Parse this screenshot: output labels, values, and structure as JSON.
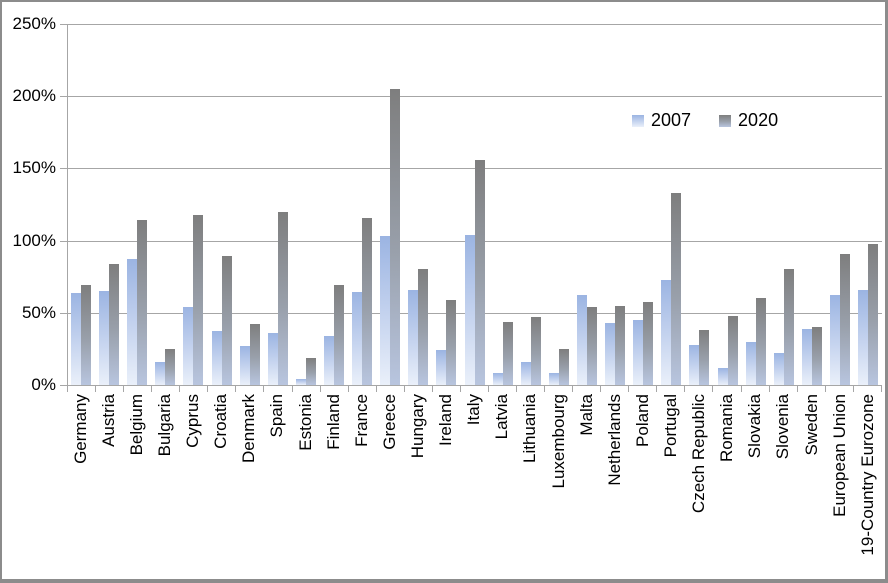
{
  "legend": {
    "items": [
      {
        "label": "2007"
      },
      {
        "label": "2020"
      }
    ]
  },
  "y_axis": {
    "tick_labels": [
      "0%",
      "50%",
      "100%",
      "150%",
      "200%",
      "250%"
    ]
  },
  "colors": {
    "gridline": "#a6a6a6",
    "axis": "#a6a6a6",
    "frame_border": "#8c8c8c",
    "series_2007_top": "#9bb4e2",
    "series_2007_mid": "#c6d4ef",
    "series_2007_bottom": "#eaf0fa",
    "series_2020_top": "#7e7e7e",
    "series_2020_mid": "#99a0ab",
    "series_2020_bottom": "#b8c5df"
  },
  "chart_data": {
    "type": "bar",
    "categories": [
      "Germany",
      "Austria",
      "Belgium",
      "Bulgaria",
      "Cyprus",
      "Croatia",
      "Denmark",
      "Spain",
      "Estonia",
      "Finland",
      "France",
      "Greece",
      "Hungary",
      "Ireland",
      "Italy",
      "Latvia",
      "Lithuania",
      "Luxembourg",
      "Malta",
      "Netherlands",
      "Poland",
      "Portugal",
      "Czech Republic",
      "Romania",
      "Slovakia",
      "Slovenia",
      "Sweden",
      "European Union",
      "19-Country Eurozone"
    ],
    "series": [
      {
        "name": "2007",
        "color_top": "#9bb4e2",
        "color_mid": "#c6d4ef",
        "color_bottom": "#eaf0fa",
        "values": [
          64,
          65,
          87,
          16,
          54,
          37.5,
          27,
          36,
          4,
          34,
          64.5,
          103,
          65.5,
          24,
          104,
          8.5,
          16,
          8,
          62,
          43,
          45,
          73,
          27.5,
          12,
          30,
          22.5,
          39,
          62,
          66
        ]
      },
      {
        "name": "2020",
        "color_top": "#7e7e7e",
        "color_mid": "#99a0ab",
        "color_bottom": "#b8c5df",
        "values": [
          69,
          84,
          114,
          25,
          118,
          89,
          42,
          120,
          18.5,
          69,
          115.5,
          205,
          80,
          59,
          155.5,
          43.5,
          47,
          25,
          54,
          54.5,
          57.5,
          133,
          38,
          47.5,
          60,
          80.5,
          40,
          90.5,
          98
        ]
      }
    ],
    "ylabel": "",
    "xlabel": "",
    "ylim": [
      0,
      250
    ],
    "y_tick_step": 50,
    "y_tick_suffix": "%",
    "grid": true,
    "legend_position": "inside-top-right"
  }
}
